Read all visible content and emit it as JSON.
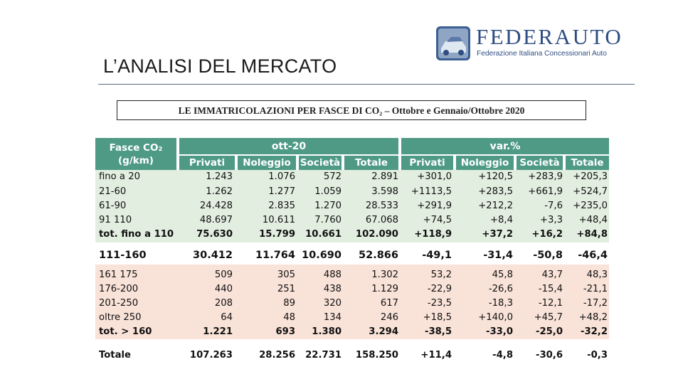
{
  "slide": {
    "title": "L’ANALISI DEL MERCATO"
  },
  "logo": {
    "name": "FEDERAUTO",
    "subtitle": "Federazione Italiana Concessionari Auto"
  },
  "table": {
    "title": "LE IMMATRICOLAZIONI PER FASCE DI CO₂ – Ottobre e Gennaio/Ottobre 2020",
    "header": {
      "band_label": "Fasce CO₂\n(g/km)",
      "group1": "ott-20",
      "group2": "var.%",
      "columns": [
        "Privati",
        "Noleggio",
        "Società",
        "Totale",
        "Privati",
        "Noleggio",
        "Società",
        "Totale"
      ]
    },
    "rows": [
      {
        "label": "fino a 20",
        "values": [
          "1.243",
          "1.076",
          "572",
          "2.891",
          "+301,0",
          "+120,5",
          "+283,9",
          "+205,3"
        ]
      },
      {
        "label": "21-60",
        "values": [
          "1.262",
          "1.277",
          "1.059",
          "3.598",
          "+1113,5",
          "+283,5",
          "+661,9",
          "+524,7"
        ]
      },
      {
        "label": "61-90",
        "values": [
          "24.428",
          "2.835",
          "1.270",
          "28.533",
          "+291,9",
          "+212,2",
          "-7,6",
          "+235,0"
        ]
      },
      {
        "label": "91 110",
        "values": [
          "48.697",
          "10.611",
          "7.760",
          "67.068",
          "+74,5",
          "+8,4",
          "+3,3",
          "+48,4"
        ]
      },
      {
        "label": "tot. fino a 110",
        "values": [
          "75.630",
          "15.799",
          "10.661",
          "102.090",
          "+118,9",
          "+37,2",
          "+16,2",
          "+84,8"
        ]
      },
      {
        "label": "111-160",
        "values": [
          "30.412",
          "11.764",
          "10.690",
          "52.866",
          "-49,1",
          "-31,4",
          "-50,8",
          "-46,4"
        ]
      },
      {
        "label": "161 175",
        "values": [
          "509",
          "305",
          "488",
          "1.302",
          "53,2",
          "45,8",
          "43,7",
          "48,3"
        ]
      },
      {
        "label": "176-200",
        "values": [
          "440",
          "251",
          "438",
          "1.129",
          "-22,9",
          "-26,6",
          "-15,4",
          "-21,1"
        ]
      },
      {
        "label": "201-250",
        "values": [
          "208",
          "89",
          "320",
          "617",
          "-23,5",
          "-18,3",
          "-12,1",
          "-17,2"
        ]
      },
      {
        "label": "oltre 250",
        "values": [
          "64",
          "48",
          "134",
          "246",
          "+18,5",
          "+140,0",
          "+45,7",
          "+48,2"
        ]
      },
      {
        "label": "tot. > 160",
        "values": [
          "1.221",
          "693",
          "1.380",
          "3.294",
          "-38,5",
          "-33,0",
          "-25,0",
          "-32,2"
        ]
      },
      {
        "label": "Totale",
        "values": [
          "107.263",
          "28.256",
          "22.731",
          "158.250",
          "+11,4",
          "-4,8",
          "-30,6",
          "-0,3"
        ]
      }
    ],
    "colors": {
      "header": "#4e9a85",
      "green_band": "#e2eee0",
      "pink_band": "#f9e2d8"
    }
  }
}
